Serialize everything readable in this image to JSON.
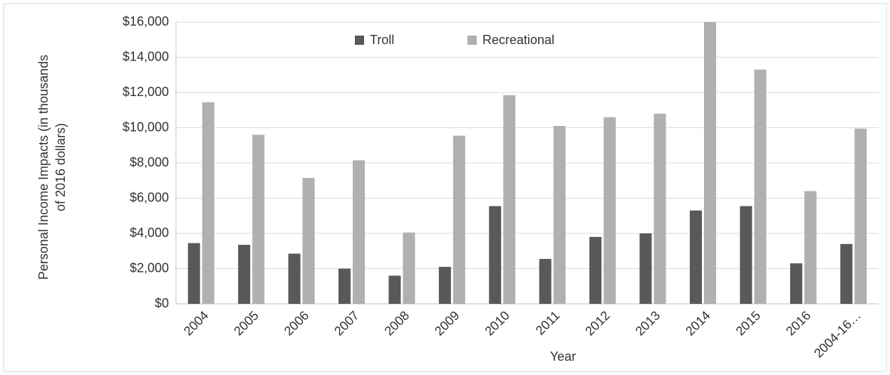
{
  "chart_data": {
    "type": "bar",
    "y_label": [
      "Personal Income Impacts (in thousands",
      "of 2016 dollars)"
    ],
    "x_label": "Year",
    "categories": [
      "2004",
      "2005",
      "2006",
      "2007",
      "2008",
      "2009",
      "2010",
      "2011",
      "2012",
      "2013",
      "2014",
      "2015",
      "2016",
      "2004-16…"
    ],
    "series": [
      {
        "name": "Troll",
        "color": "#595959",
        "values": [
          3450,
          3350,
          2850,
          2000,
          1600,
          2100,
          5550,
          2550,
          3800,
          4000,
          5300,
          5550,
          2300,
          3400
        ]
      },
      {
        "name": "Recreational",
        "color": "#b0b0b0",
        "values": [
          11450,
          9600,
          7150,
          8150,
          4050,
          9550,
          11850,
          10100,
          10600,
          10800,
          16000,
          13300,
          6400,
          9950
        ]
      }
    ],
    "ylim": [
      0,
      16000
    ],
    "yticks": [
      {
        "value": 0,
        "label": "$0"
      },
      {
        "value": 2000,
        "label": "$2,000"
      },
      {
        "value": 4000,
        "label": "$4,000"
      },
      {
        "value": 6000,
        "label": "$6,000"
      },
      {
        "value": 8000,
        "label": "$8,000"
      },
      {
        "value": 10000,
        "label": "$10,000"
      },
      {
        "value": 12000,
        "label": "$12,000"
      },
      {
        "value": 14000,
        "label": "$14,000"
      },
      {
        "value": 16000,
        "label": "$16,000"
      }
    ],
    "grid": true
  }
}
